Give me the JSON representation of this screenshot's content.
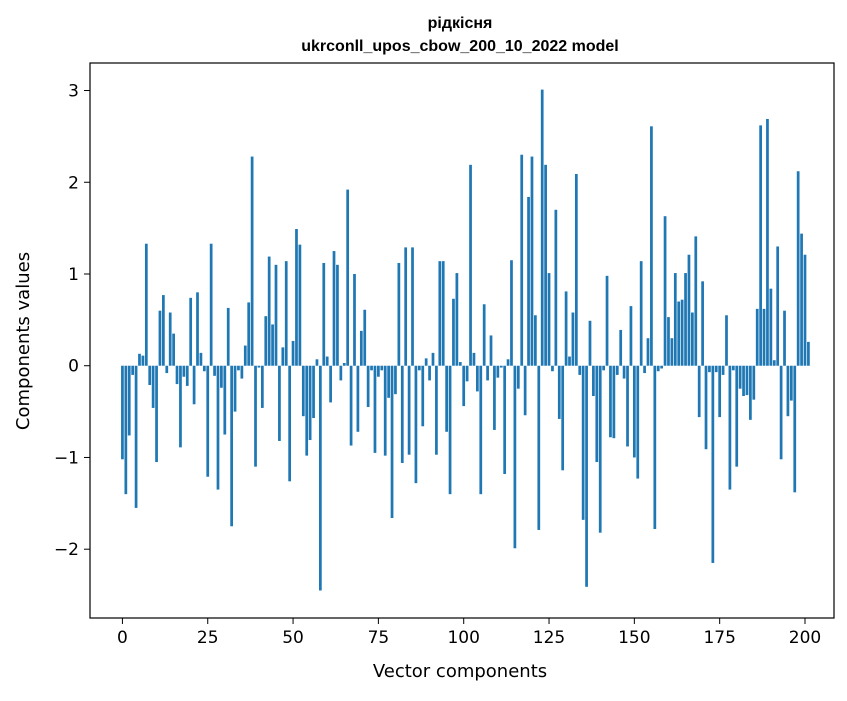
{
  "chart_data": {
    "type": "bar",
    "title_line1": "рідкісня",
    "title_line2": "ukrconll_upos_cbow_200_10_2022 model",
    "xlabel": "Vector components",
    "ylabel": "Components values",
    "xlim": [
      -9.5,
      208.5
    ],
    "ylim": [
      -2.75,
      3.3
    ],
    "xticks": [
      0,
      25,
      50,
      75,
      100,
      125,
      150,
      175,
      200
    ],
    "yticks": [
      -2,
      -1,
      0,
      1,
      2,
      3
    ],
    "ytick_labels": [
      "−2",
      "−1",
      "0",
      "1",
      "2",
      "3"
    ],
    "bar_color": "#1f77b4",
    "grid": false,
    "values": [
      -1.02,
      -1.4,
      -0.76,
      -0.1,
      -1.55,
      0.13,
      0.11,
      1.33,
      -0.21,
      -0.46,
      -1.05,
      0.6,
      0.77,
      -0.08,
      0.58,
      0.35,
      -0.2,
      -0.89,
      -0.12,
      -0.22,
      0.74,
      -0.42,
      0.8,
      0.14,
      -0.06,
      -1.21,
      1.33,
      -0.11,
      -1.35,
      -0.24,
      -0.75,
      0.63,
      -1.75,
      -0.5,
      -0.05,
      -0.14,
      0.22,
      0.69,
      2.28,
      -1.1,
      -0.02,
      -0.46,
      0.54,
      1.19,
      0.45,
      1.1,
      -0.82,
      0.2,
      1.14,
      -1.26,
      0.27,
      1.49,
      1.32,
      -0.55,
      -0.98,
      -0.81,
      -0.57,
      0.07,
      -2.45,
      1.12,
      0.1,
      -0.4,
      1.25,
      1.1,
      -0.16,
      0.03,
      1.92,
      -0.87,
      1.0,
      -0.72,
      0.38,
      0.61,
      -0.45,
      -0.05,
      -0.95,
      -0.12,
      -0.05,
      -0.98,
      -0.35,
      -1.66,
      -0.31,
      1.12,
      -1.06,
      1.29,
      -0.97,
      1.29,
      -1.28,
      -0.05,
      -0.66,
      0.08,
      -0.16,
      0.14,
      -0.97,
      1.14,
      1.14,
      -0.72,
      -1.4,
      0.73,
      1.01,
      0.04,
      -0.44,
      -0.17,
      2.19,
      0.14,
      -0.28,
      -1.4,
      0.67,
      -0.16,
      0.33,
      -0.7,
      -0.13,
      -0.02,
      -1.18,
      0.07,
      1.15,
      -1.99,
      -0.25,
      2.3,
      -0.54,
      1.84,
      2.28,
      0.55,
      -1.79,
      3.01,
      2.19,
      1.01,
      -0.06,
      1.7,
      -0.58,
      -1.14,
      0.81,
      0.1,
      0.58,
      2.09,
      -0.1,
      -1.68,
      -2.41,
      0.49,
      -0.33,
      -1.05,
      -1.82,
      -0.05,
      0.98,
      -0.78,
      -0.79,
      -0.1,
      0.39,
      -0.14,
      -0.88,
      0.65,
      -1.0,
      -1.23,
      1.14,
      -0.08,
      0.3,
      2.61,
      -1.78,
      -0.06,
      -0.03,
      1.63,
      0.53,
      0.3,
      1.01,
      0.7,
      0.72,
      1.01,
      1.21,
      0.58,
      1.41,
      -0.56,
      0.92,
      -0.91,
      -0.07,
      -2.15,
      -0.07,
      -0.56,
      -0.1,
      0.55,
      -1.35,
      -0.05,
      -1.1,
      -0.25,
      -0.33,
      -0.32,
      -0.59,
      -0.37,
      0.62,
      2.62,
      0.62,
      2.69,
      0.84,
      0.06,
      1.3,
      -1.02,
      0.6,
      -0.55,
      -0.38,
      -1.38,
      2.12,
      1.44,
      1.21,
      0.26
    ]
  }
}
